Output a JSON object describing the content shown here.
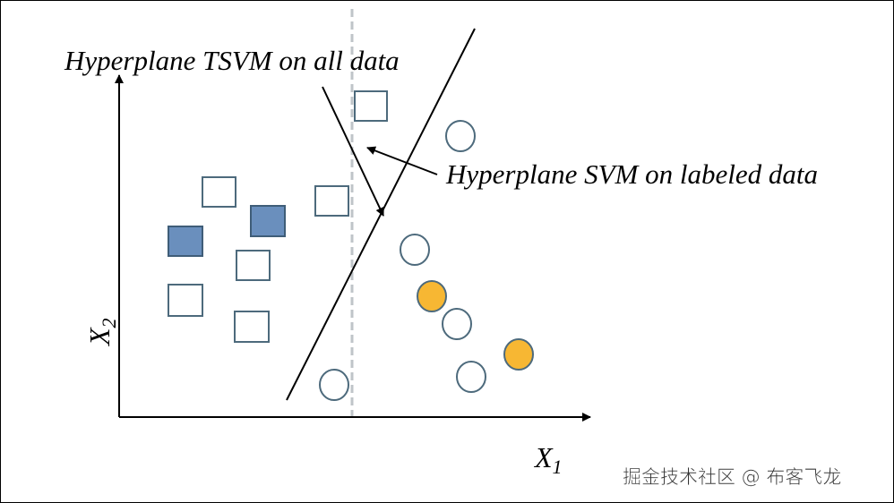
{
  "labels": {
    "tsvm": "Hyperplane TSVM on all data",
    "svm": "Hyperplane SVM on labeled data"
  },
  "axes": {
    "x": {
      "letter": "X",
      "subscript": "1"
    },
    "y": {
      "letter": "X",
      "subscript": "2"
    }
  },
  "watermark": "掘金技术社区 @ 布客飞龙"
}
